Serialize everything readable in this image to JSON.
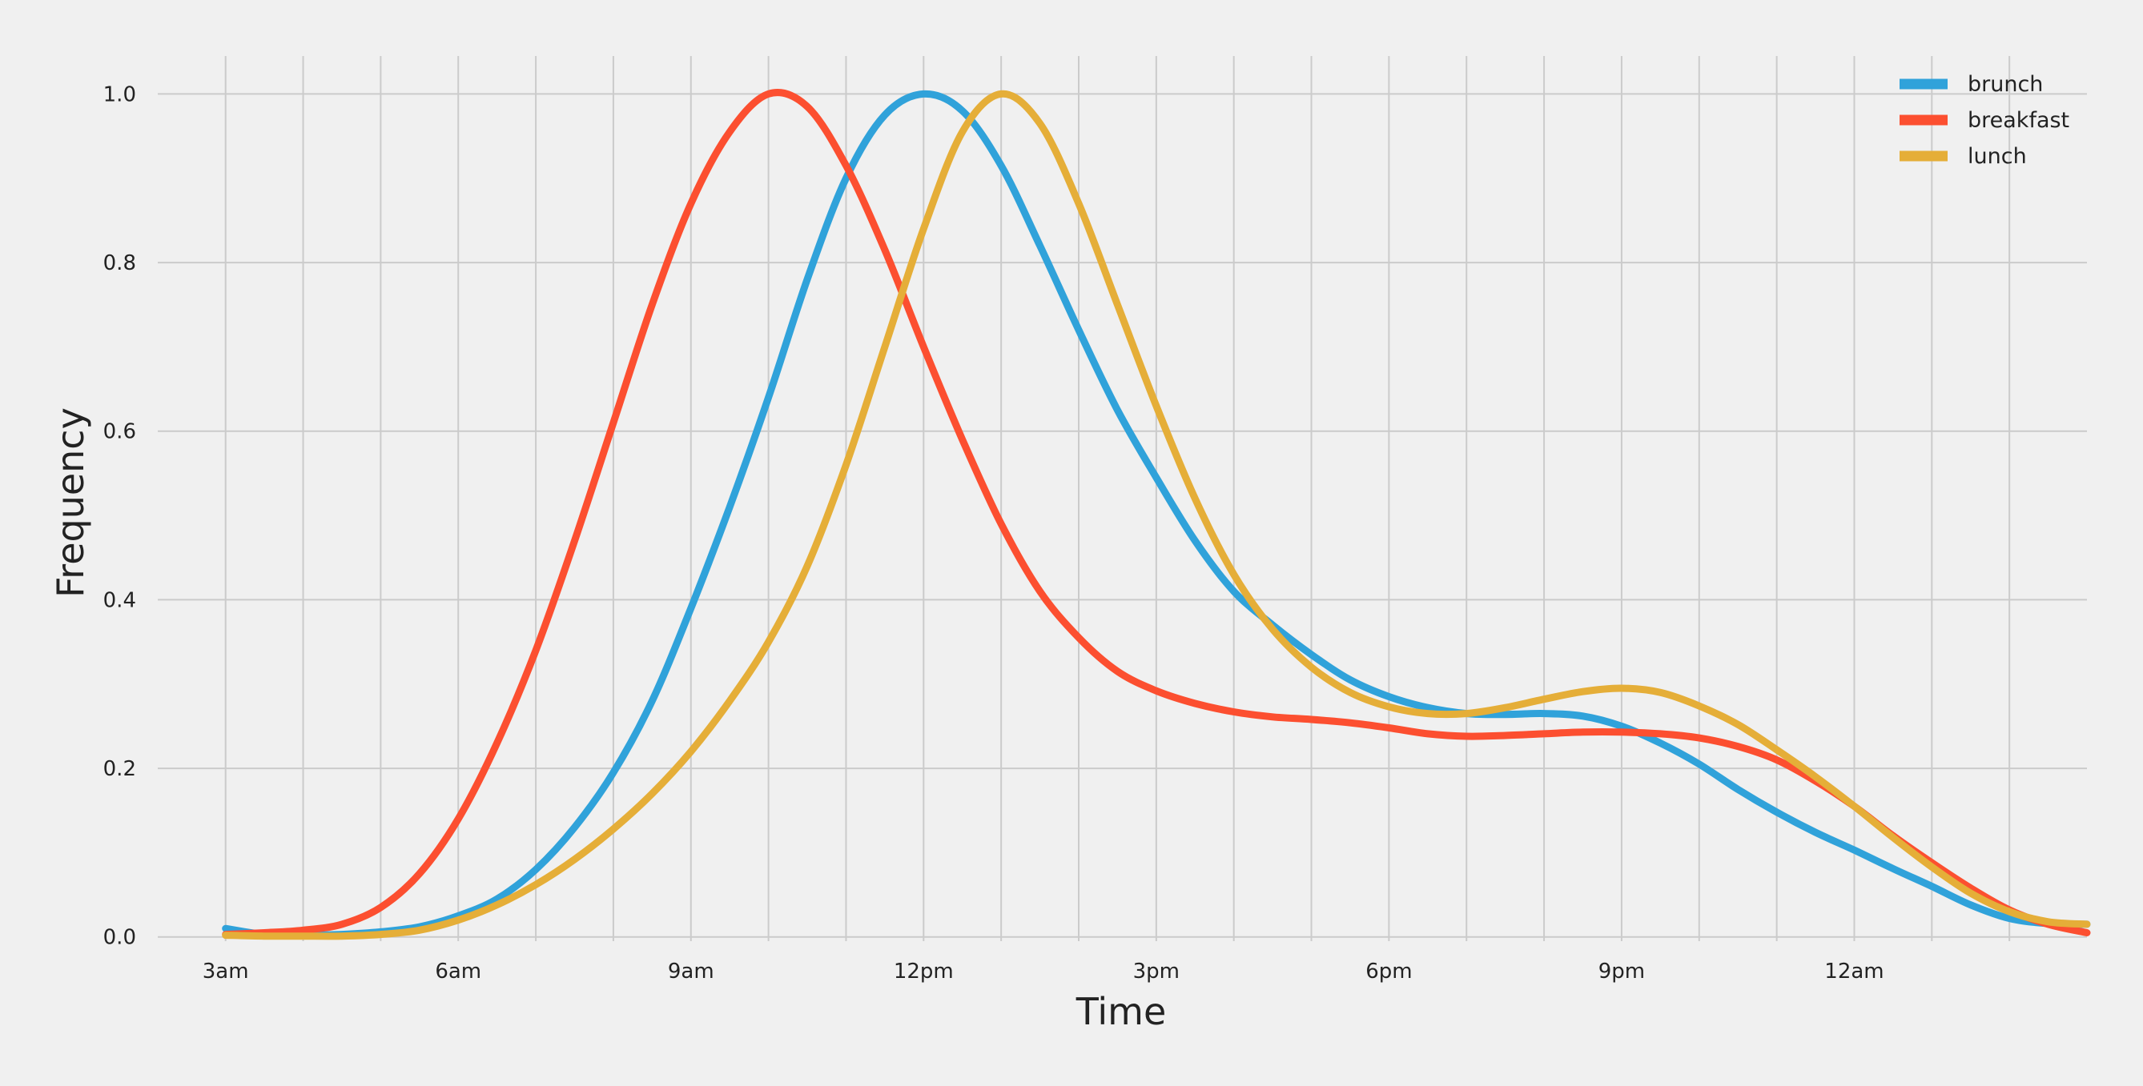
{
  "chart_data": {
    "type": "line",
    "xlabel": "Time",
    "ylabel": "Frequency",
    "x_unit": "hour of day (hours after midnight; values above 24 wrap to the next day)",
    "xlim": [
      2.9,
      27.0
    ],
    "ylim": [
      -0.005,
      1.045
    ],
    "x_ticks": [
      {
        "value": 3,
        "label": "3am"
      },
      {
        "value": 6,
        "label": "6am"
      },
      {
        "value": 9,
        "label": "9am"
      },
      {
        "value": 12,
        "label": "12pm"
      },
      {
        "value": 15,
        "label": "3pm"
      },
      {
        "value": 18,
        "label": "6pm"
      },
      {
        "value": 21,
        "label": "9pm"
      },
      {
        "value": 24,
        "label": "12am"
      }
    ],
    "x_grid_values": [
      3,
      4,
      5,
      6,
      7,
      8,
      9,
      10,
      11,
      12,
      13,
      14,
      15,
      16,
      17,
      18,
      19,
      20,
      21,
      22,
      23,
      24,
      25,
      26
    ],
    "y_ticks": [
      {
        "value": 0.0,
        "label": "0.0"
      },
      {
        "value": 0.2,
        "label": "0.2"
      },
      {
        "value": 0.4,
        "label": "0.4"
      },
      {
        "value": 0.6,
        "label": "0.6"
      },
      {
        "value": 0.8,
        "label": "0.8"
      },
      {
        "value": 1.0,
        "label": "1.0"
      }
    ],
    "grid": true,
    "legend_position": "top-right",
    "series": [
      {
        "name": "brunch",
        "color": "#30a2da",
        "points": [
          [
            3.0,
            0.01
          ],
          [
            3.5,
            0.003
          ],
          [
            4,
            0.002
          ],
          [
            4.5,
            0.003
          ],
          [
            5,
            0.006
          ],
          [
            5.5,
            0.012
          ],
          [
            6,
            0.025
          ],
          [
            6.5,
            0.045
          ],
          [
            7,
            0.08
          ],
          [
            7.5,
            0.13
          ],
          [
            8,
            0.195
          ],
          [
            8.5,
            0.28
          ],
          [
            9,
            0.39
          ],
          [
            9.5,
            0.51
          ],
          [
            10,
            0.64
          ],
          [
            10.5,
            0.78
          ],
          [
            11,
            0.9
          ],
          [
            11.5,
            0.975
          ],
          [
            12,
            1.0
          ],
          [
            12.5,
            0.98
          ],
          [
            13,
            0.915
          ],
          [
            13.5,
            0.82
          ],
          [
            14,
            0.72
          ],
          [
            14.5,
            0.625
          ],
          [
            15,
            0.545
          ],
          [
            15.5,
            0.47
          ],
          [
            16,
            0.41
          ],
          [
            16.5,
            0.37
          ],
          [
            17,
            0.335
          ],
          [
            17.5,
            0.305
          ],
          [
            18,
            0.285
          ],
          [
            18.5,
            0.272
          ],
          [
            19,
            0.265
          ],
          [
            19.5,
            0.264
          ],
          [
            20,
            0.265
          ],
          [
            20.5,
            0.262
          ],
          [
            21,
            0.25
          ],
          [
            21.5,
            0.23
          ],
          [
            22,
            0.205
          ],
          [
            22.5,
            0.175
          ],
          [
            23,
            0.148
          ],
          [
            23.5,
            0.124
          ],
          [
            24,
            0.103
          ],
          [
            24.5,
            0.081
          ],
          [
            25,
            0.06
          ],
          [
            25.5,
            0.038
          ],
          [
            26,
            0.022
          ],
          [
            26.5,
            0.016
          ],
          [
            27,
            0.015
          ]
        ]
      },
      {
        "name": "breakfast",
        "color": "#fc4f30",
        "points": [
          [
            3.0,
            0.003
          ],
          [
            3.5,
            0.005
          ],
          [
            4,
            0.008
          ],
          [
            4.5,
            0.015
          ],
          [
            5,
            0.035
          ],
          [
            5.5,
            0.075
          ],
          [
            6,
            0.14
          ],
          [
            6.5,
            0.23
          ],
          [
            7,
            0.34
          ],
          [
            7.5,
            0.47
          ],
          [
            8,
            0.61
          ],
          [
            8.5,
            0.75
          ],
          [
            9,
            0.87
          ],
          [
            9.5,
            0.955
          ],
          [
            10,
            1.0
          ],
          [
            10.5,
            0.985
          ],
          [
            11,
            0.915
          ],
          [
            11.5,
            0.815
          ],
          [
            12,
            0.7
          ],
          [
            12.5,
            0.59
          ],
          [
            13,
            0.49
          ],
          [
            13.5,
            0.41
          ],
          [
            14,
            0.355
          ],
          [
            14.5,
            0.315
          ],
          [
            15,
            0.292
          ],
          [
            15.5,
            0.277
          ],
          [
            16,
            0.267
          ],
          [
            16.5,
            0.261
          ],
          [
            17,
            0.258
          ],
          [
            17.5,
            0.254
          ],
          [
            18,
            0.248
          ],
          [
            18.5,
            0.241
          ],
          [
            19,
            0.238
          ],
          [
            19.5,
            0.239
          ],
          [
            20,
            0.241
          ],
          [
            20.5,
            0.243
          ],
          [
            21,
            0.243
          ],
          [
            21.5,
            0.241
          ],
          [
            22,
            0.236
          ],
          [
            22.5,
            0.226
          ],
          [
            23,
            0.21
          ],
          [
            23.5,
            0.185
          ],
          [
            24,
            0.155
          ],
          [
            24.5,
            0.12
          ],
          [
            25,
            0.088
          ],
          [
            25.5,
            0.058
          ],
          [
            26,
            0.032
          ],
          [
            26.5,
            0.015
          ],
          [
            27,
            0.005
          ]
        ]
      },
      {
        "name": "lunch",
        "color": "#e5ae38",
        "points": [
          [
            3.0,
            0.002
          ],
          [
            3.5,
            0.001
          ],
          [
            4,
            0.001
          ],
          [
            4.5,
            0.001
          ],
          [
            5,
            0.003
          ],
          [
            5.5,
            0.008
          ],
          [
            6,
            0.02
          ],
          [
            6.5,
            0.038
          ],
          [
            7,
            0.062
          ],
          [
            7.5,
            0.092
          ],
          [
            8,
            0.128
          ],
          [
            8.5,
            0.17
          ],
          [
            9,
            0.22
          ],
          [
            9.5,
            0.28
          ],
          [
            10,
            0.35
          ],
          [
            10.5,
            0.44
          ],
          [
            11,
            0.56
          ],
          [
            11.5,
            0.7
          ],
          [
            12,
            0.84
          ],
          [
            12.5,
            0.955
          ],
          [
            13,
            1.0
          ],
          [
            13.5,
            0.965
          ],
          [
            14,
            0.87
          ],
          [
            14.5,
            0.75
          ],
          [
            15,
            0.63
          ],
          [
            15.5,
            0.52
          ],
          [
            16,
            0.43
          ],
          [
            16.5,
            0.365
          ],
          [
            17,
            0.32
          ],
          [
            17.5,
            0.29
          ],
          [
            18,
            0.273
          ],
          [
            18.5,
            0.265
          ],
          [
            19,
            0.265
          ],
          [
            19.5,
            0.272
          ],
          [
            20,
            0.282
          ],
          [
            20.5,
            0.291
          ],
          [
            21,
            0.295
          ],
          [
            21.5,
            0.29
          ],
          [
            22,
            0.274
          ],
          [
            22.5,
            0.252
          ],
          [
            23,
            0.222
          ],
          [
            23.5,
            0.19
          ],
          [
            24,
            0.155
          ],
          [
            24.5,
            0.118
          ],
          [
            25,
            0.083
          ],
          [
            25.5,
            0.052
          ],
          [
            26,
            0.03
          ],
          [
            26.5,
            0.018
          ],
          [
            27,
            0.015
          ]
        ]
      }
    ]
  }
}
